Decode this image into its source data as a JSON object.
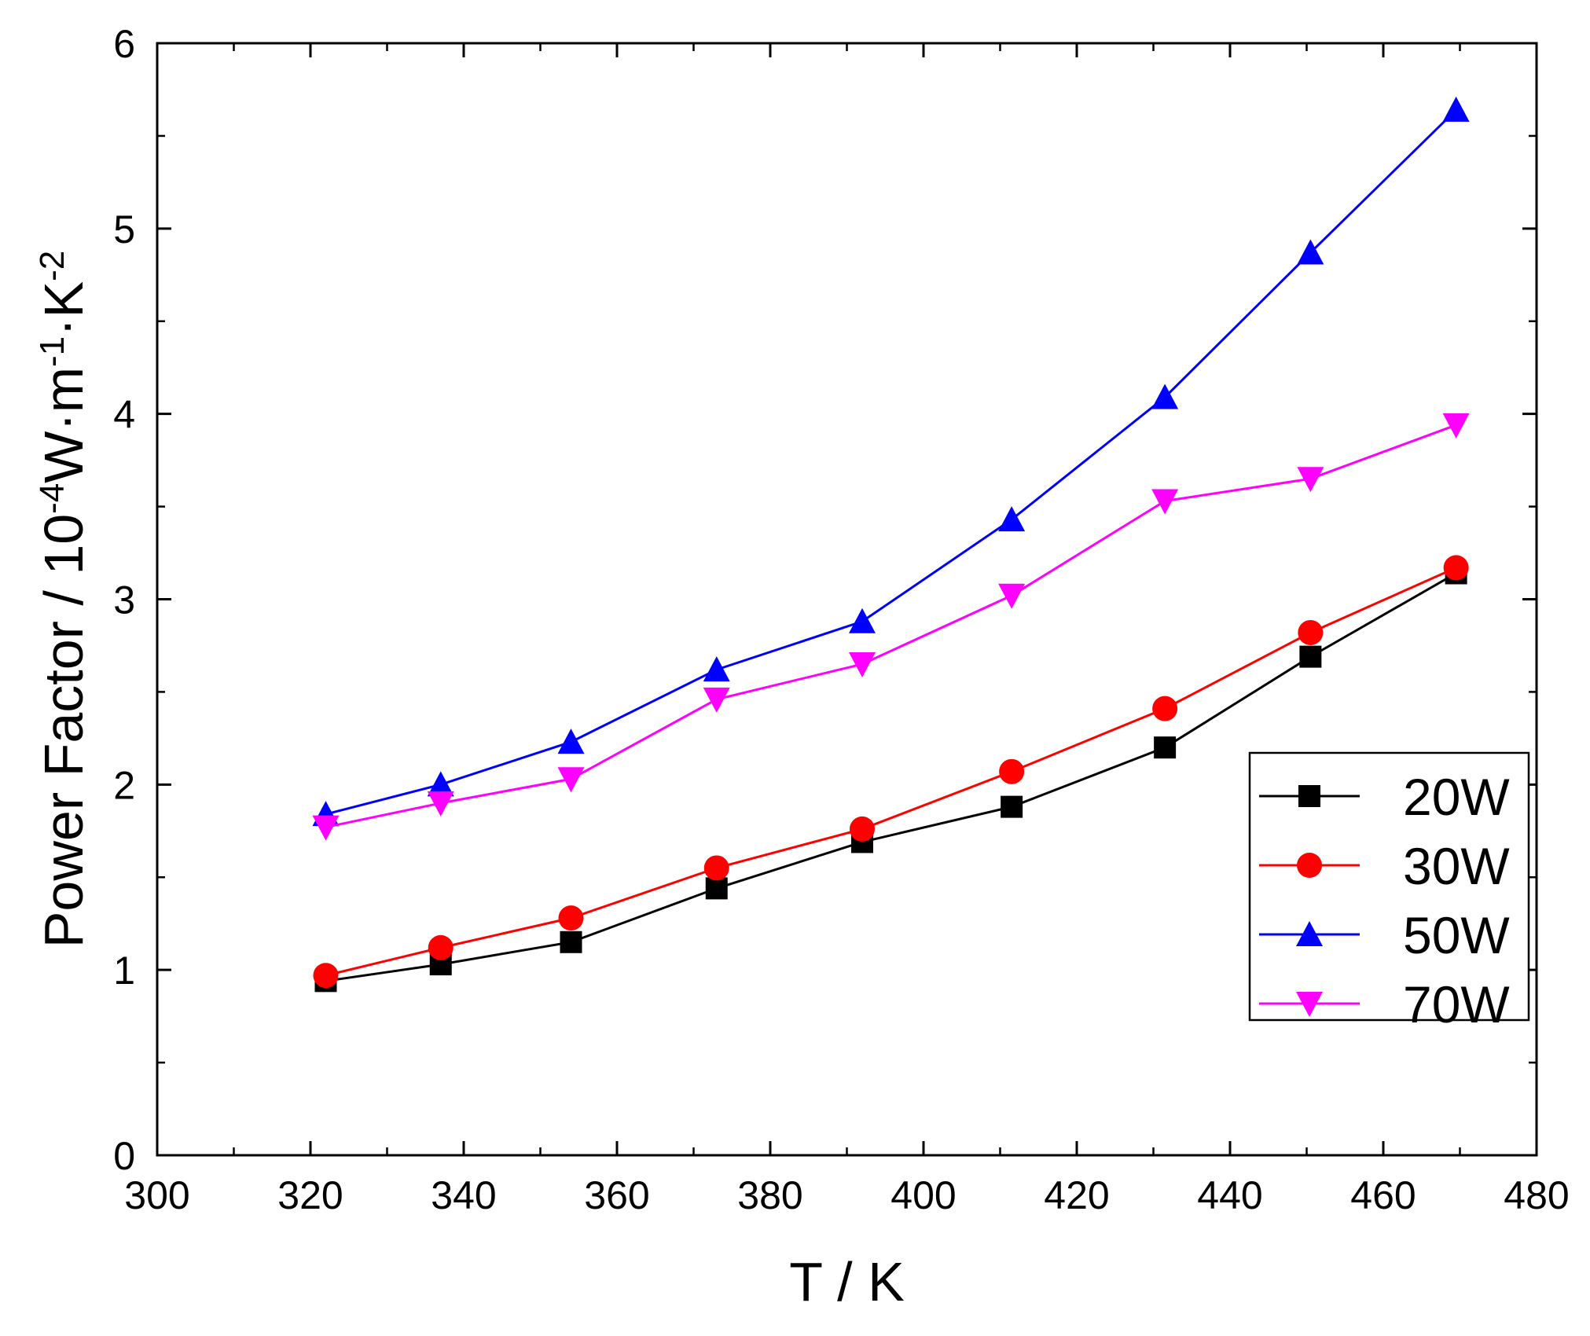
{
  "chart_data": {
    "type": "line",
    "title": "",
    "xlabel": "T / K",
    "ylabel": {
      "prefix": "Power Factor / 10",
      "exp1": "-4",
      "unit1": "W·m",
      "exp2": "-1",
      "unit2": "·K",
      "exp3": "-2"
    },
    "xlim": [
      300,
      480
    ],
    "ylim": [
      0,
      6
    ],
    "xticks": [
      300,
      320,
      340,
      360,
      380,
      400,
      420,
      440,
      460,
      480
    ],
    "yticks": [
      0,
      1,
      2,
      3,
      4,
      5,
      6
    ],
    "x_tick_labels": [
      "300",
      "320",
      "340",
      "360",
      "380",
      "400",
      "420",
      "440",
      "460",
      "480"
    ],
    "y_tick_labels": [
      "0",
      "1",
      "2",
      "3",
      "4",
      "5",
      "6"
    ],
    "grid": false,
    "legend_position": "right",
    "x": [
      322,
      337,
      354,
      373,
      392,
      411.5,
      431.5,
      450.5,
      469.5
    ],
    "series": [
      {
        "name": "20W",
        "color": "#000000",
        "marker": "square",
        "values": [
          0.94,
          1.03,
          1.15,
          1.44,
          1.69,
          1.88,
          2.2,
          2.69,
          3.14
        ]
      },
      {
        "name": "30W",
        "color": "#ff0000",
        "marker": "circle",
        "values": [
          0.97,
          1.12,
          1.28,
          1.55,
          1.76,
          2.07,
          2.41,
          2.82,
          3.17
        ]
      },
      {
        "name": "50W",
        "color": "#0000ff",
        "marker": "triangle-up",
        "values": [
          1.84,
          2.0,
          2.23,
          2.62,
          2.88,
          3.43,
          4.09,
          4.87,
          5.64
        ]
      },
      {
        "name": "70W",
        "color": "#ff00ff",
        "marker": "triangle-down",
        "values": [
          1.77,
          1.9,
          2.03,
          2.46,
          2.65,
          3.02,
          3.53,
          3.65,
          3.94
        ]
      }
    ]
  }
}
